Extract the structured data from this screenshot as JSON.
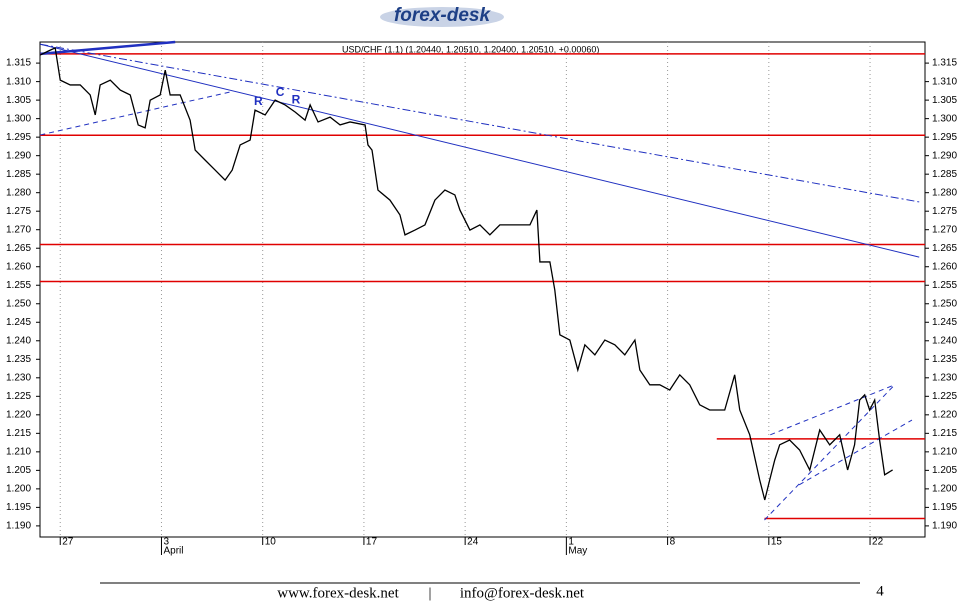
{
  "logo": "forex-desk",
  "chart_data": {
    "type": "line",
    "title": "USD/CHF (1.1) (1.20440, 1.20510, 1.20400, 1.20510, +0.00060)",
    "xlim": [
      -1.4,
      59.8
    ],
    "xticks": [
      {
        "value": 0,
        "label": "27"
      },
      {
        "value": 7,
        "label": "3"
      },
      {
        "value": 14,
        "label": "10"
      },
      {
        "value": 21,
        "label": "17"
      },
      {
        "value": 28,
        "label": "24"
      },
      {
        "value": 35,
        "label": "1"
      },
      {
        "value": 42,
        "label": "8"
      },
      {
        "value": 49,
        "label": "15"
      },
      {
        "value": 56,
        "label": "22"
      }
    ],
    "months": [
      {
        "value": 7,
        "label": "April"
      },
      {
        "value": 35,
        "label": "May"
      }
    ],
    "ylim": [
      1.187,
      1.3207
    ],
    "yticks": [
      {
        "value": 1.19,
        "label": "1.190"
      },
      {
        "value": 1.195,
        "label": "1.195"
      },
      {
        "value": 1.2,
        "label": "1.200"
      },
      {
        "value": 1.205,
        "label": "1.205"
      },
      {
        "value": 1.21,
        "label": "1.210"
      },
      {
        "value": 1.215,
        "label": "1.215"
      },
      {
        "value": 1.22,
        "label": "1.220"
      },
      {
        "value": 1.225,
        "label": "1.225"
      },
      {
        "value": 1.23,
        "label": "1.230"
      },
      {
        "value": 1.235,
        "label": "1.235"
      },
      {
        "value": 1.24,
        "label": "1.240"
      },
      {
        "value": 1.245,
        "label": "1.245"
      },
      {
        "value": 1.25,
        "label": "1.250"
      },
      {
        "value": 1.255,
        "label": "1.255"
      },
      {
        "value": 1.26,
        "label": "1.260"
      },
      {
        "value": 1.265,
        "label": "1.265"
      },
      {
        "value": 1.27,
        "label": "1.270"
      },
      {
        "value": 1.275,
        "label": "1.275"
      },
      {
        "value": 1.28,
        "label": "1.280"
      },
      {
        "value": 1.285,
        "label": "1.285"
      },
      {
        "value": 1.29,
        "label": "1.290"
      },
      {
        "value": 1.295,
        "label": "1.295"
      },
      {
        "value": 1.3,
        "label": "1.300"
      },
      {
        "value": 1.305,
        "label": "1.305"
      },
      {
        "value": 1.31,
        "label": "1.310"
      },
      {
        "value": 1.315,
        "label": "1.315"
      }
    ],
    "grid": "x",
    "color": "#000000",
    "x": [
      -1.38,
      -0.69,
      -0.35,
      0,
      0.69,
      1.38,
      2.07,
      2.42,
      2.76,
      3.46,
      4.15,
      4.84,
      5.39,
      5.87,
      6.22,
      6.91,
      7.26,
      7.6,
      8.29,
      8.98,
      9.33,
      10.02,
      10.71,
      11.4,
      11.89,
      12.44,
      13.13,
      13.47,
      14.17,
      14.86,
      15.55,
      16.24,
      16.93,
      17.28,
      17.83,
      18.66,
      19.35,
      20.04,
      21.08,
      21.28,
      21.56,
      21.97,
      22.8,
      23.49,
      23.84,
      24.53,
      25.22,
      25.91,
      26.6,
      27.29,
      27.64,
      28.33,
      29.02,
      29.71,
      30.4,
      31.1,
      31.79,
      32.48,
      32.96,
      33.17,
      33.86,
      34.2,
      34.55,
      35.24,
      35.79,
      36.28,
      36.97,
      37.66,
      38.35,
      39.04,
      39.74,
      40.08,
      40.77,
      41.46,
      42.15,
      42.84,
      43.53,
      44.22,
      44.91,
      45.95,
      46.64,
      46.99,
      47.68,
      48.37,
      48.72,
      49.06,
      49.41,
      49.75,
      50.44,
      51.13,
      51.83,
      52.52,
      53.21,
      53.9,
      54.45,
      54.93,
      55.28,
      55.63,
      55.97,
      56.32,
      56.66,
      57.01,
      57.56
    ],
    "values": [
      1.3172,
      1.3185,
      1.3191,
      1.3104,
      1.3091,
      1.3091,
      1.3064,
      1.301,
      1.3091,
      1.3104,
      1.3077,
      1.3064,
      1.2983,
      1.2975,
      1.305,
      1.3064,
      1.3131,
      1.3064,
      1.3064,
      1.2996,
      1.2915,
      1.2888,
      1.2861,
      1.2834,
      1.2861,
      1.2929,
      1.2942,
      1.3023,
      1.301,
      1.305,
      1.3037,
      1.3018,
      1.2996,
      1.3037,
      1.2991,
      1.3004,
      1.2983,
      1.2991,
      1.2983,
      1.2929,
      1.2915,
      1.2807,
      1.278,
      1.274,
      1.2686,
      1.2699,
      1.2713,
      1.278,
      1.2807,
      1.2794,
      1.2753,
      1.2699,
      1.2713,
      1.2686,
      1.2713,
      1.2713,
      1.2713,
      1.2713,
      1.2753,
      1.2613,
      1.2613,
      1.2537,
      1.2416,
      1.2402,
      1.2321,
      1.2389,
      1.2362,
      1.2402,
      1.2389,
      1.2362,
      1.2402,
      1.2321,
      1.2281,
      1.2281,
      1.2267,
      1.2308,
      1.2281,
      1.2227,
      1.2213,
      1.2213,
      1.2308,
      1.2213,
      1.2146,
      1.2024,
      1.197,
      1.2024,
      1.2078,
      1.2119,
      1.2132,
      1.2105,
      1.2051,
      1.2159,
      1.2119,
      1.2146,
      1.2051,
      1.2119,
      1.224,
      1.2254,
      1.2213,
      1.224,
      1.2132,
      1.2038,
      1.2051
    ],
    "levels": [
      {
        "value": 1.3175
      },
      {
        "value": 1.2955
      },
      {
        "value": 1.266
      },
      {
        "value": 1.256
      },
      {
        "value": 1.2135,
        "from": 45.4
      },
      {
        "value": 1.192,
        "from": 48.7
      }
    ],
    "level_color": "#e00000",
    "trendlines": [
      {
        "style": "solid",
        "x": [
          -1.38,
          59.4
        ],
        "y": [
          1.3201,
          1.2626
        ]
      },
      {
        "style": "dashdot",
        "x": [
          -1.38,
          59.4
        ],
        "y": [
          1.3201,
          1.2775
        ]
      },
      {
        "style": "dashed",
        "x": [
          -1.38,
          11.75
        ],
        "y": [
          1.2956,
          1.3072
        ]
      },
      {
        "style": "dashed",
        "x": [
          48.7,
          57.7
        ],
        "y": [
          1.1916,
          1.2281
        ]
      },
      {
        "style": "dashed",
        "x": [
          49.1,
          57.7
        ],
        "y": [
          1.2146,
          1.2281
        ]
      },
      {
        "style": "dashed",
        "x": [
          51.1,
          58.9
        ],
        "y": [
          1.2011,
          1.2186
        ]
      },
      {
        "style": "bold",
        "x": [
          -1.38,
          7.95
        ],
        "y": [
          1.3175,
          1.3207
        ]
      }
    ],
    "trend_color": "#2030c0",
    "annotations": [
      {
        "text": "R",
        "x": 13.7,
        "y": 1.3045
      },
      {
        "text": "C",
        "x": 15.2,
        "y": 1.307
      },
      {
        "text": "R",
        "x": 16.3,
        "y": 1.305
      }
    ]
  },
  "footer": {
    "website": "www.forex-desk.net",
    "separator": "|",
    "email": "info@forex-desk.net",
    "page": "4"
  }
}
